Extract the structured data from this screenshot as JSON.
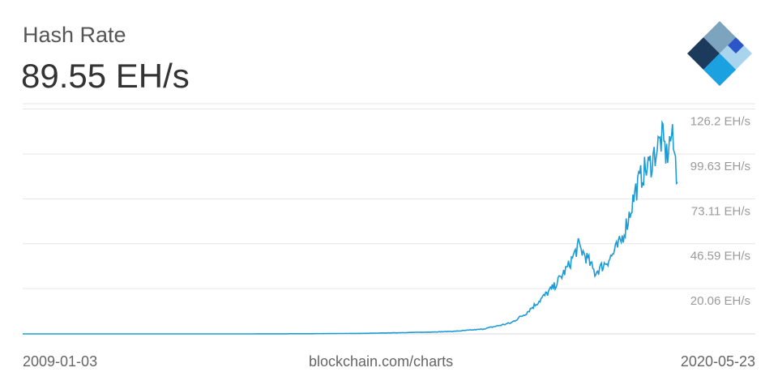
{
  "header": {
    "title": "Hash Rate",
    "current_value": "89.55 EH/s"
  },
  "logo": {
    "icon": "blockchain-logo-icon",
    "colors": [
      "#1b3a5c",
      "#7da4bf",
      "#2c56c7",
      "#1ba0e0",
      "#a8d4ee"
    ]
  },
  "footer": {
    "start_date": "2009-01-03",
    "source": "blockchain.com/charts",
    "end_date": "2020-05-23"
  },
  "chart_data": {
    "type": "line",
    "series": [
      {
        "line_color": "#1f9bd4",
        "x": [
          "2009-01-03",
          "2010-01-01",
          "2011-01-01",
          "2012-01-01",
          "2013-01-01",
          "2014-01-01",
          "2015-01-01",
          "2016-01-01",
          "2016-07-01",
          "2017-01-01",
          "2017-07-01",
          "2017-10-01",
          "2018-01-01",
          "2018-04-01",
          "2018-07-01",
          "2018-09-01",
          "2018-11-01",
          "2018-12-15",
          "2019-02-01",
          "2019-04-01",
          "2019-06-01",
          "2019-07-15",
          "2019-09-01",
          "2019-10-15",
          "2019-12-01",
          "2020-01-15",
          "2020-02-15",
          "2020-03-15",
          "2020-04-15",
          "2020-05-10",
          "2020-05-23"
        ],
        "y": [
          0,
          0,
          0,
          0.01,
          0.02,
          0.1,
          0.35,
          1.0,
          1.5,
          2.8,
          6.5,
          12,
          20,
          28,
          40,
          52,
          44,
          36,
          40,
          46,
          55,
          68,
          85,
          95,
          100,
          110,
          116,
          105,
          118,
          102,
          89.55
        ]
      }
    ],
    "ylim": [
      0,
      136
    ],
    "yticks": [
      20.06,
      46.59,
      73.11,
      99.63,
      126.2
    ],
    "ytick_labels": [
      "20.06 EH/s",
      "46.59 EH/s",
      "73.11 EH/s",
      "99.63 EH/s",
      "126.2 EH/s"
    ],
    "ytick_position": "right",
    "grid": true,
    "legend": "none"
  }
}
